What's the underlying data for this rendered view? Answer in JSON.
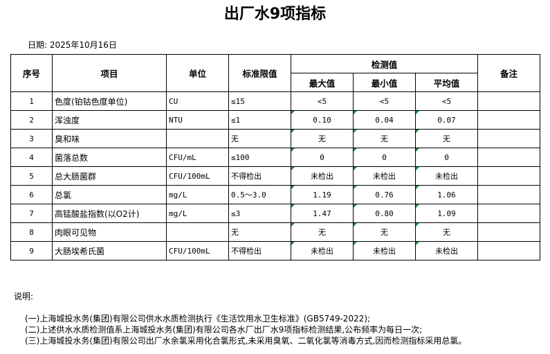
{
  "title": "出厂水9项指标",
  "date": "日期: 2025年10月16日",
  "headers": {
    "no": "序号",
    "item": "项目",
    "unit": "单位",
    "limit": "标准限值",
    "detect": "检测值",
    "max": "最大值",
    "min": "最小值",
    "avg": "平均值",
    "remark": "备注"
  },
  "rows": [
    {
      "no": "1",
      "item": "色度(铂钴色度单位)",
      "unit": "CU",
      "limit": "≤15",
      "max": "<5",
      "min": "<5",
      "avg": "<5"
    },
    {
      "no": "2",
      "item": "浑浊度",
      "unit": "NTU",
      "limit": "≤1",
      "max": "0.10",
      "min": "0.04",
      "avg": "0.07"
    },
    {
      "no": "3",
      "item": "臭和味",
      "unit": "",
      "limit": "无",
      "max": "无",
      "min": "无",
      "avg": "无"
    },
    {
      "no": "4",
      "item": "菌落总数",
      "unit": "CFU/mL",
      "limit": "≤100",
      "max": "0",
      "min": "0",
      "avg": "0"
    },
    {
      "no": "5",
      "item": "总大肠菌群",
      "unit": "CFU/100mL",
      "limit": "不得检出",
      "max": "未检出",
      "min": "未检出",
      "avg": "未检出"
    },
    {
      "no": "6",
      "item": "总氯",
      "unit": "mg/L",
      "limit": "0.5～3.0",
      "max": "1.19",
      "min": "0.76",
      "avg": "1.06"
    },
    {
      "no": "7",
      "item": "高锰酸盐指数(以O2计)",
      "unit": "mg/L",
      "limit": "≤3",
      "max": "1.47",
      "min": "0.80",
      "avg": "1.09"
    },
    {
      "no": "8",
      "item": "肉眼可见物",
      "unit": "",
      "limit": "无",
      "max": "无",
      "min": "无",
      "avg": "无"
    },
    {
      "no": "9",
      "item": "大肠埃希氏菌",
      "unit": "CFU/100mL",
      "limit": "不得检出",
      "max": "未检出",
      "min": "未检出",
      "avg": "未检出"
    }
  ],
  "notes": {
    "label": "说明:",
    "lines": [
      "(一)上海城投水务(集团)有限公司供水水质检测执行《生活饮用水卫生标准》(GB5749-2022);",
      "(二)上述供水水质检测值系上海城投水务(集团)有限公司各水厂出厂水9项指标检测结果,公布频率为每日一次;",
      "(三)上海城投水务(集团)有限公司出厂水余氯采用化合氯形式,未采用臭氧、二氧化氯等消毒方式,因而检测指标采用总氯。"
    ]
  }
}
